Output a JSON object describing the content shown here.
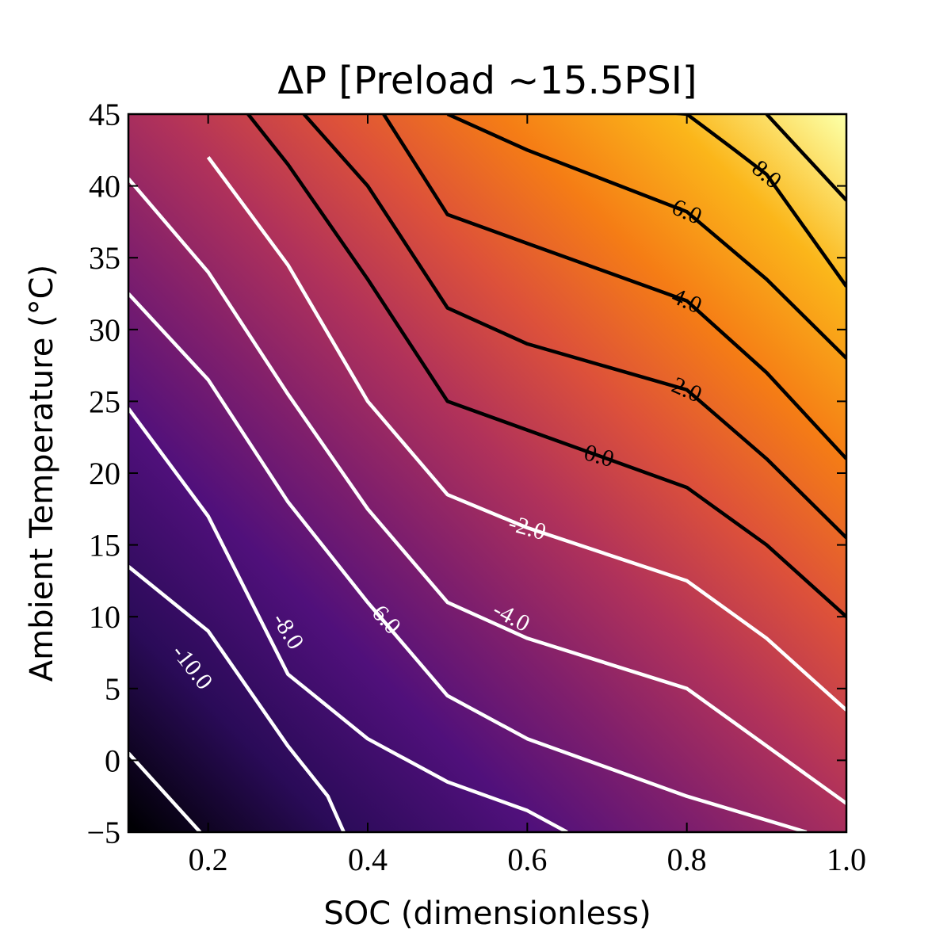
{
  "chart_data": {
    "type": "heatmap",
    "subtype": "filled-contour",
    "title": "ΔP [Preload ~15.5PSI]",
    "xlabel": "SOC (dimensionless)",
    "ylabel": "Ambient Temperature (°C)",
    "xlim": [
      0.1,
      1.0
    ],
    "ylim": [
      -5,
      45
    ],
    "xticks": [
      0.2,
      0.4,
      0.6,
      0.8,
      1.0
    ],
    "xtick_labels": [
      "0.2",
      "0.4",
      "0.6",
      "0.8",
      "1.0"
    ],
    "yticks": [
      -5,
      0,
      5,
      10,
      15,
      20,
      25,
      30,
      35,
      40,
      45
    ],
    "ytick_labels": [
      "−5",
      "0",
      "5",
      "10",
      "15",
      "20",
      "25",
      "30",
      "35",
      "40",
      "45"
    ],
    "colormap": "inferno",
    "value_range": [
      -13.0,
      10.0
    ],
    "grid": false,
    "contours": [
      {
        "level": -12.0,
        "color": "#ffffff",
        "label": "",
        "points": [
          [
            0.1,
            0.5
          ],
          [
            0.19,
            -5
          ]
        ]
      },
      {
        "level": -10.0,
        "color": "#ffffff",
        "label": "-10.0",
        "label_pos": [
          0.18,
          6.5
        ],
        "label_angle": 52,
        "points": [
          [
            0.1,
            13.5
          ],
          [
            0.2,
            9.0
          ],
          [
            0.3,
            1.0
          ],
          [
            0.35,
            -2.5
          ],
          [
            0.37,
            -5
          ]
        ]
      },
      {
        "level": -8.0,
        "color": "#ffffff",
        "label": "-8.0",
        "label_pos": [
          0.3,
          9.0
        ],
        "label_angle": 58,
        "points": [
          [
            0.1,
            24.5
          ],
          [
            0.2,
            17.0
          ],
          [
            0.3,
            6.0
          ],
          [
            0.4,
            1.5
          ],
          [
            0.5,
            -1.5
          ],
          [
            0.6,
            -3.5
          ],
          [
            0.65,
            -5
          ]
        ]
      },
      {
        "level": -6.0,
        "color": "#ffffff",
        "label": "-6.0",
        "label_pos": [
          0.42,
          10.0
        ],
        "label_angle": 48,
        "points": [
          [
            0.1,
            32.5
          ],
          [
            0.2,
            26.5
          ],
          [
            0.3,
            18.0
          ],
          [
            0.4,
            11.0
          ],
          [
            0.5,
            4.5
          ],
          [
            0.6,
            1.5
          ],
          [
            0.8,
            -2.5
          ],
          [
            0.95,
            -5
          ]
        ]
      },
      {
        "level": -4.0,
        "color": "#ffffff",
        "label": "-4.0",
        "label_pos": [
          0.58,
          10.0
        ],
        "label_angle": 28,
        "points": [
          [
            0.1,
            40.5
          ],
          [
            0.2,
            34.0
          ],
          [
            0.3,
            25.5
          ],
          [
            0.4,
            17.5
          ],
          [
            0.5,
            11.0
          ],
          [
            0.6,
            8.5
          ],
          [
            0.8,
            5.0
          ],
          [
            1.0,
            -3.0
          ]
        ]
      },
      {
        "level": -2.0,
        "color": "#ffffff",
        "label": "-2.0",
        "label_pos": [
          0.6,
          16.2
        ],
        "label_angle": 16,
        "points": [
          [
            0.2,
            42.0
          ],
          [
            0.3,
            34.5
          ],
          [
            0.4,
            25.0
          ],
          [
            0.5,
            18.5
          ],
          [
            0.6,
            16.2
          ],
          [
            0.8,
            12.5
          ],
          [
            0.9,
            8.5
          ],
          [
            1.0,
            3.5
          ]
        ]
      },
      {
        "level": 0.0,
        "color": "#000000",
        "label": "0.0",
        "label_pos": [
          0.69,
          21.2
        ],
        "label_angle": 16,
        "points": [
          [
            0.25,
            45.0
          ],
          [
            0.3,
            41.5
          ],
          [
            0.4,
            33.5
          ],
          [
            0.5,
            25.0
          ],
          [
            0.6,
            23.0
          ],
          [
            0.8,
            19.0
          ],
          [
            0.9,
            15.0
          ],
          [
            1.0,
            10.0
          ]
        ]
      },
      {
        "level": 2.0,
        "color": "#000000",
        "label": "2.0",
        "label_pos": [
          0.8,
          25.8
        ],
        "label_angle": 24,
        "points": [
          [
            0.32,
            45.0
          ],
          [
            0.4,
            40.0
          ],
          [
            0.5,
            31.5
          ],
          [
            0.6,
            29.0
          ],
          [
            0.8,
            25.8
          ],
          [
            0.9,
            21.0
          ],
          [
            1.0,
            15.5
          ]
        ]
      },
      {
        "level": 4.0,
        "color": "#000000",
        "label": "4.0",
        "label_pos": [
          0.8,
          32.0
        ],
        "label_angle": 24,
        "points": [
          [
            0.42,
            45.0
          ],
          [
            0.5,
            38.0
          ],
          [
            0.6,
            36.0
          ],
          [
            0.8,
            32.0
          ],
          [
            0.9,
            27.0
          ],
          [
            1.0,
            21.0
          ]
        ]
      },
      {
        "level": 6.0,
        "color": "#000000",
        "label": "6.0",
        "label_pos": [
          0.8,
          38.2
        ],
        "label_angle": 24,
        "points": [
          [
            0.5,
            45.0
          ],
          [
            0.6,
            42.5
          ],
          [
            0.8,
            38.2
          ],
          [
            0.9,
            33.5
          ],
          [
            1.0,
            28.0
          ]
        ]
      },
      {
        "level": 8.0,
        "color": "#000000",
        "label": "8.0",
        "label_pos": [
          0.9,
          40.8
        ],
        "label_angle": 40,
        "points": [
          [
            0.7,
            45.5
          ],
          [
            0.8,
            45.0
          ],
          [
            0.86,
            42.5
          ],
          [
            0.9,
            40.8
          ],
          [
            1.0,
            33.0
          ]
        ]
      },
      {
        "level": 10.0,
        "color": "#000000",
        "label": "",
        "points": [
          [
            0.9,
            45.0
          ],
          [
            1.0,
            39.0
          ]
        ]
      }
    ]
  }
}
